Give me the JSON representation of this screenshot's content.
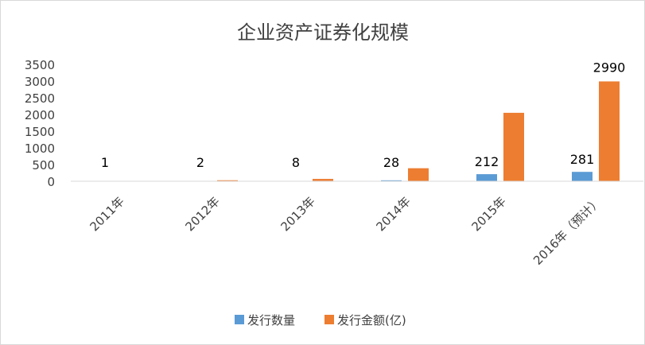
{
  "chart_data": {
    "type": "bar",
    "title": "企业资产证券化规模",
    "categories": [
      "2011年",
      "2012年",
      "2013年",
      "2014年",
      "2015年",
      "2016年（预计）"
    ],
    "series": [
      {
        "name": "发行数量",
        "values": [
          1,
          2,
          8,
          28,
          212,
          281
        ],
        "color": "#5B9BD5"
      },
      {
        "name": "发行金额(亿)",
        "values": [
          3,
          30,
          70,
          390,
          2050,
          2990
        ],
        "color": "#ED7D31"
      }
    ],
    "data_labels": [
      "1",
      "2",
      "8",
      "28",
      "212",
      "281"
    ],
    "extra_labels": [
      null,
      null,
      null,
      null,
      null,
      "2990"
    ],
    "ylim": [
      0,
      3500
    ],
    "yticks": [
      0,
      500,
      1000,
      1500,
      2000,
      2500,
      3000,
      3500
    ],
    "grid": false,
    "legend_position": "bottom"
  }
}
